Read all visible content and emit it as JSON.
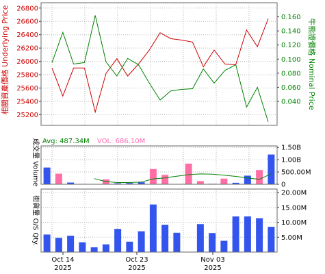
{
  "chart_data": [
    {
      "type": "line",
      "x": [
        "2025-10-09",
        "2025-10-10",
        "2025-10-13",
        "2025-10-14",
        "2025-10-15",
        "2025-10-16",
        "2025-10-17",
        "2025-10-20",
        "2025-10-21",
        "2025-10-22",
        "2025-10-23",
        "2025-10-24",
        "2025-10-27",
        "2025-10-28",
        "2025-10-29",
        "2025-10-30",
        "2025-10-31",
        "2025-11-03",
        "2025-11-04",
        "2025-11-05",
        "2025-11-06"
      ],
      "ylabel": "相關資產價格 Underlying Price",
      "y2label": "牛熊證價格 Nominal Price",
      "ylim": [
        25040,
        26880
      ],
      "y2lim": [
        0.006,
        0.18
      ],
      "yticks": [
        25200,
        25400,
        25600,
        25800,
        26000,
        26200,
        26400,
        26600,
        26800
      ],
      "y2ticks": [
        0.04,
        0.06,
        0.08,
        0.1,
        0.12,
        0.14,
        0.16
      ],
      "grid": true,
      "series": [
        {
          "name": "Underlying Price",
          "axis": "left",
          "color": "#cc0000",
          "values": [
            25900,
            25480,
            25900,
            25900,
            25240,
            25820,
            26040,
            25780,
            25960,
            26170,
            26430,
            26340,
            26320,
            26290,
            25920,
            26170,
            25960,
            25950,
            26470,
            26220,
            26640
          ]
        },
        {
          "name": "Nominal Price",
          "axis": "right",
          "color": "#008000",
          "values": [
            0.095,
            0.138,
            0.093,
            0.095,
            0.162,
            0.096,
            0.076,
            0.101,
            0.092,
            0.066,
            0.042,
            0.055,
            0.057,
            0.058,
            0.086,
            0.066,
            0.084,
            0.092,
            0.032,
            0.06,
            0.011
          ]
        }
      ]
    },
    {
      "type": "bar",
      "ylabel": "成交量 Volume",
      "legend": {
        "avg_label": "Avg: 487.34M",
        "vol_label": "VOL: 686.10M",
        "avg_color": "#008000",
        "vol_color": "#ff69b4"
      },
      "ylim": [
        0,
        1560
      ],
      "yticks": [
        {
          "v": 0,
          "label": "0"
        },
        {
          "v": 500,
          "label": "500.00M"
        },
        {
          "v": 1000,
          "label": "1.00B"
        },
        {
          "v": 1500,
          "label": "1.50B"
        }
      ],
      "up_color": "#ff6fa5",
      "down_color": "#3355ee",
      "values": [
        680,
        430,
        70,
        15,
        0,
        200,
        40,
        50,
        80,
        620,
        380,
        0,
        840,
        130,
        20,
        230,
        60,
        350,
        580,
        1210
      ],
      "directions": [
        "down",
        "up",
        "down",
        "down",
        "down",
        "up",
        "down",
        "down",
        "down",
        "up",
        "up",
        "down",
        "up",
        "up",
        "down",
        "up",
        "down",
        "down",
        "up",
        "down"
      ],
      "avg_line": [
        null,
        null,
        null,
        null,
        230,
        110,
        70,
        70,
        90,
        220,
        260,
        330,
        390,
        420,
        410,
        370,
        320,
        260,
        200,
        430
      ]
    },
    {
      "type": "bar",
      "ylabel": "街貨量 O/S Qty.",
      "ylim": [
        0,
        21.2
      ],
      "yticks": [
        {
          "v": 5,
          "label": "5.00M"
        },
        {
          "v": 10,
          "label": "10.00M"
        },
        {
          "v": 15,
          "label": "15.00M"
        },
        {
          "v": 20,
          "label": "20.00M"
        }
      ],
      "color": "#3355ee",
      "values": [
        5.9,
        4.8,
        5.5,
        3.3,
        1.6,
        2.6,
        7.8,
        3.5,
        7.0,
        16.0,
        9.2,
        6.5,
        0,
        9.4,
        6.4,
        3.8,
        12.0,
        12.0,
        11.4,
        8.5
      ]
    }
  ],
  "x_axis": {
    "tick_labels": [
      {
        "date": "Oct 14",
        "year": "2025"
      },
      {
        "date": "Oct 23",
        "year": "2025"
      },
      {
        "date": "Nov 03",
        "year": "2025"
      }
    ]
  },
  "colors": {
    "plot_bg": "#ffffff",
    "frame": "#666666",
    "grid": "#bbbbbb"
  }
}
